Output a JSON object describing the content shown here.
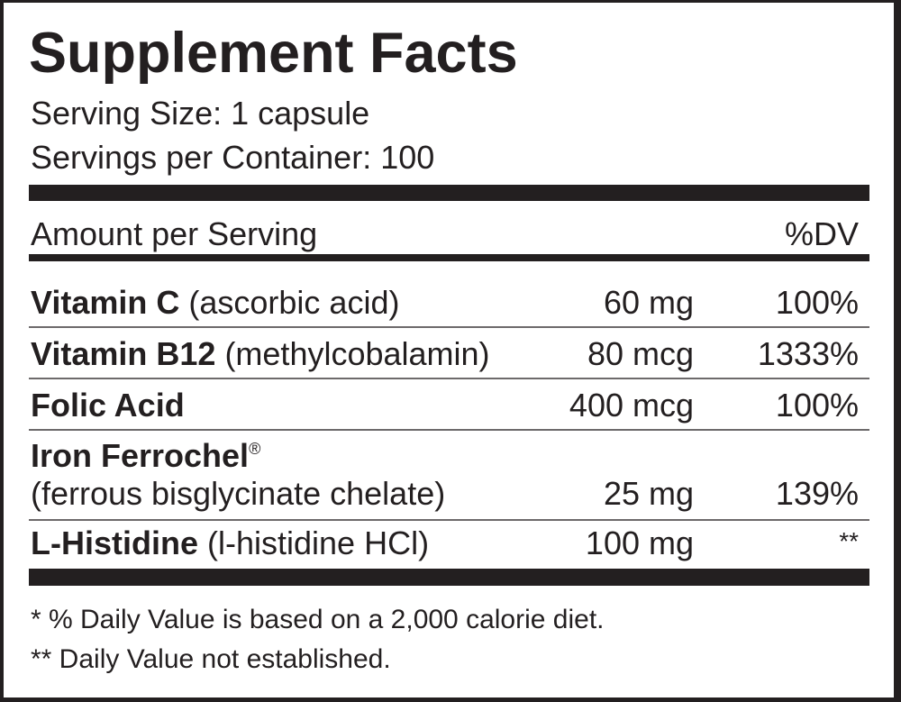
{
  "title": "Supplement Facts",
  "serving_size": "Serving Size: 1 capsule",
  "servings_per_container": "Servings per Container: 100",
  "header": {
    "amount": "Amount per Serving",
    "dv": "%DV"
  },
  "rows": [
    {
      "name": "Vitamin C",
      "detail": "(ascorbic acid)",
      "amount": "60 mg",
      "dv": "100%"
    },
    {
      "name": "Vitamin B12",
      "detail": "(methylcobalamin)",
      "amount": "80 mcg",
      "dv": "1333%"
    },
    {
      "name": "Folic Acid",
      "detail": "",
      "amount": "400 mcg",
      "dv": "100%"
    },
    {
      "name": "Iron Ferrochel",
      "mark": "®",
      "detail": "(ferrous bisglycinate chelate)",
      "amount": "25 mg",
      "dv": "139%"
    },
    {
      "name": "L-Histidine",
      "detail": "(l-histidine HCl)",
      "amount": "100 mg",
      "dv": "**"
    }
  ],
  "footnotes": [
    "* % Daily Value is based on a 2,000 calorie diet.",
    "** Daily Value not established."
  ]
}
